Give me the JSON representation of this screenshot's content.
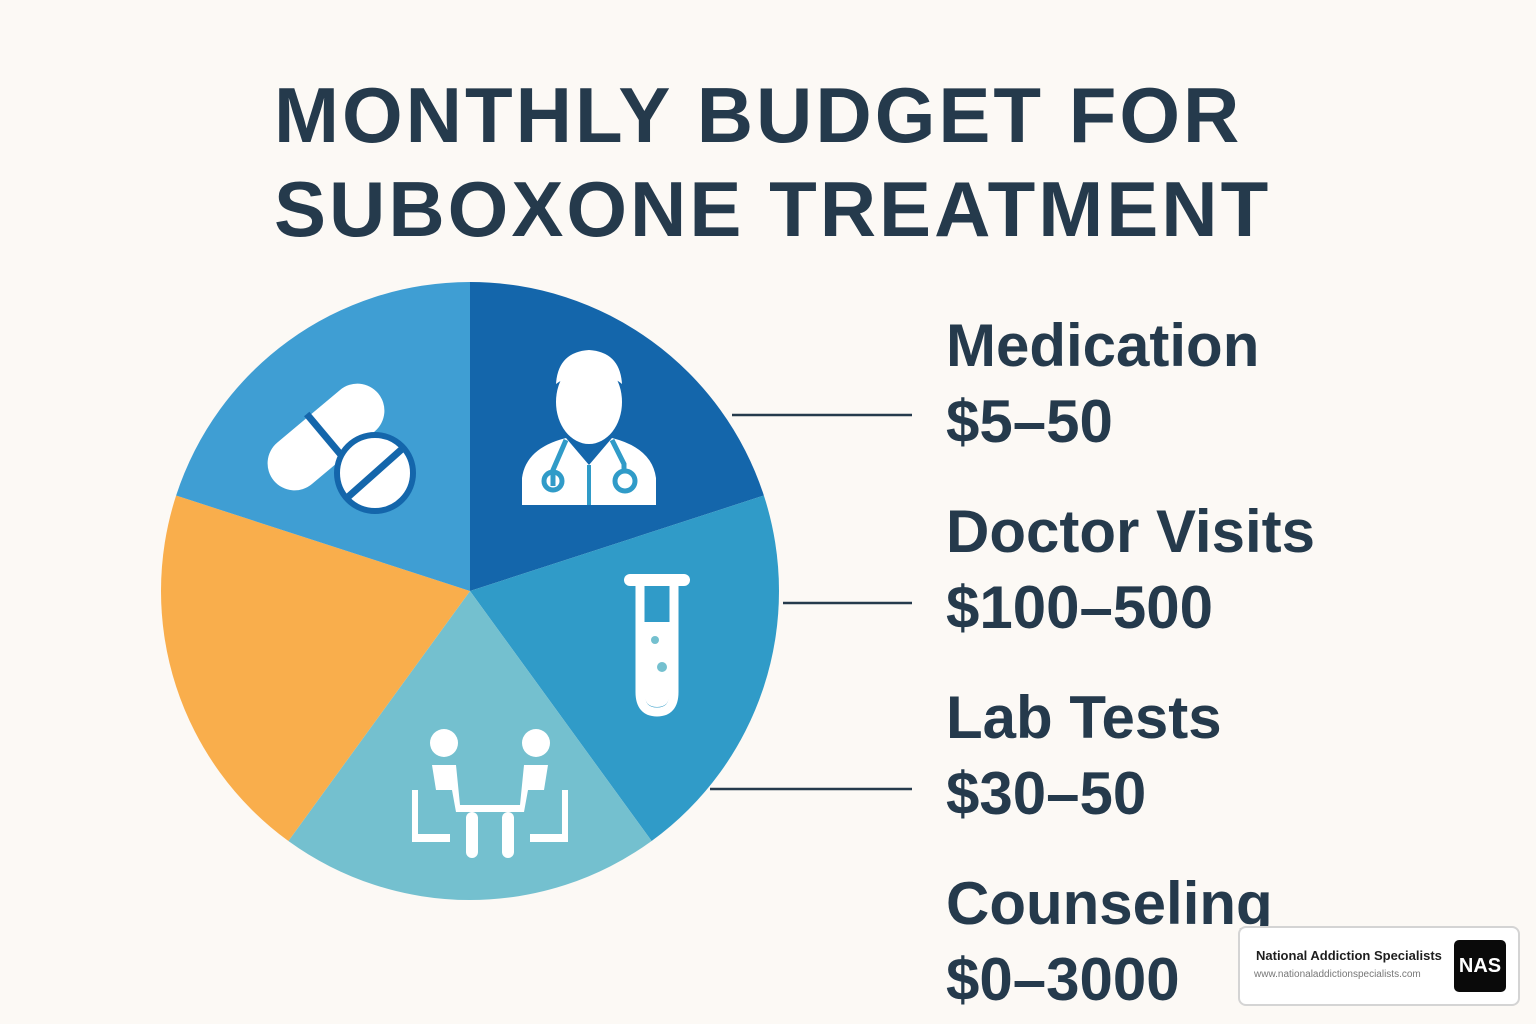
{
  "title": {
    "line1": "MONTHLY BUDGET FOR",
    "line2": "SUBOXONE TREATMENT"
  },
  "chart_data": {
    "type": "pie",
    "title": "MONTHLY BUDGET FOR SUBOXONE TREATMENT",
    "slices": [
      {
        "share": 0.2,
        "color": "#1466ab",
        "icon": "pills-icon"
      },
      {
        "share": 0.2,
        "color": "#309bc8",
        "icon": "doctor-icon"
      },
      {
        "share": 0.2,
        "color": "#74c0cf",
        "icon": "test-tube-icon"
      },
      {
        "share": 0.2,
        "color": "#f9ae4c",
        "icon": "counseling-icon"
      },
      {
        "share": 0.2,
        "color": "#3f9ed3",
        "icon": ""
      }
    ],
    "legend": [
      {
        "name": "Medication",
        "range": "$5–50"
      },
      {
        "name": "Doctor Visits",
        "range": "$100–500"
      },
      {
        "name": "Lab Tests",
        "range": "$30–50"
      },
      {
        "name": "Counseling",
        "range": "$0–3000"
      }
    ]
  },
  "badge": {
    "name": "National Addiction Specialists",
    "url": "www.nationaladdictionspecialists.com",
    "logo": "NAS"
  }
}
